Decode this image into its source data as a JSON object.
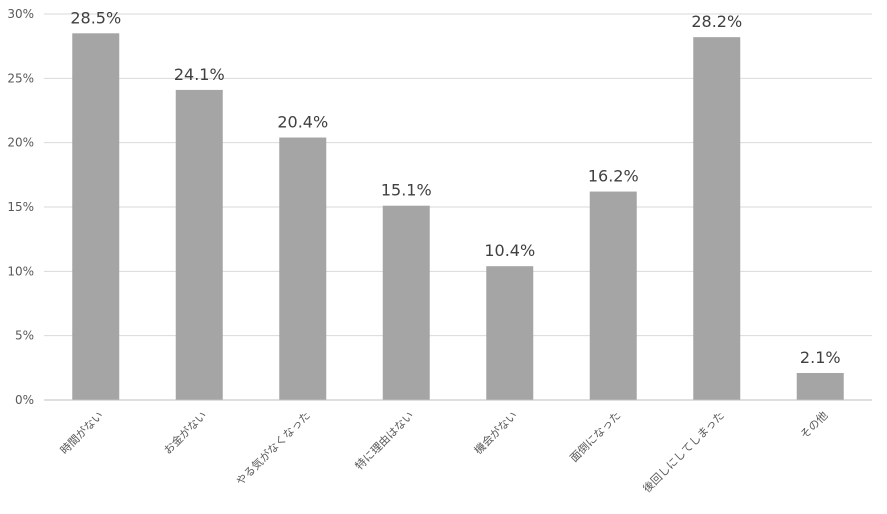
{
  "chart_data": {
    "type": "bar",
    "categories": [
      "時間がない",
      "お金がない",
      "やる気がなくなった",
      "特に理由はない",
      "機会がない",
      "面倒になった",
      "後回しにしてしまった",
      "その他"
    ],
    "values": [
      28.5,
      24.1,
      20.4,
      15.1,
      10.4,
      16.2,
      28.2,
      2.1
    ],
    "data_labels": [
      "28.5%",
      "24.1%",
      "20.4%",
      "15.1%",
      "10.4%",
      "16.2%",
      "28.2%",
      "2.1%"
    ],
    "y_ticks": [
      0,
      5,
      10,
      15,
      20,
      25,
      30
    ],
    "y_tick_labels": [
      "0%",
      "5%",
      "10%",
      "15%",
      "20%",
      "25%",
      "30%"
    ],
    "ylim": [
      0,
      30
    ],
    "grid": true,
    "legend": "none",
    "bar_color": "#a5a5a5",
    "title": "",
    "xlabel": "",
    "ylabel": ""
  }
}
